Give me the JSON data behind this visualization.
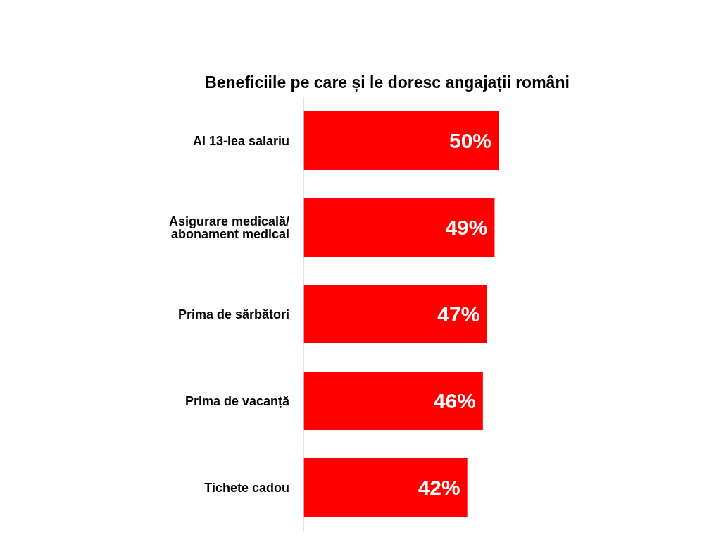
{
  "chart_data": {
    "type": "bar",
    "orientation": "horizontal",
    "title": "Beneficiile pe care și le doresc angajații români",
    "categories": [
      "Al 13-lea salariu",
      "Asigurare medicală/ abonament medical",
      "Prima de sărbători",
      "Prima de vacanță",
      "Tichete cadou"
    ],
    "values": [
      50,
      49,
      47,
      46,
      42
    ],
    "value_labels": [
      "50%",
      "49%",
      "47%",
      "46%",
      "42%"
    ],
    "color": "#ff0000"
  }
}
